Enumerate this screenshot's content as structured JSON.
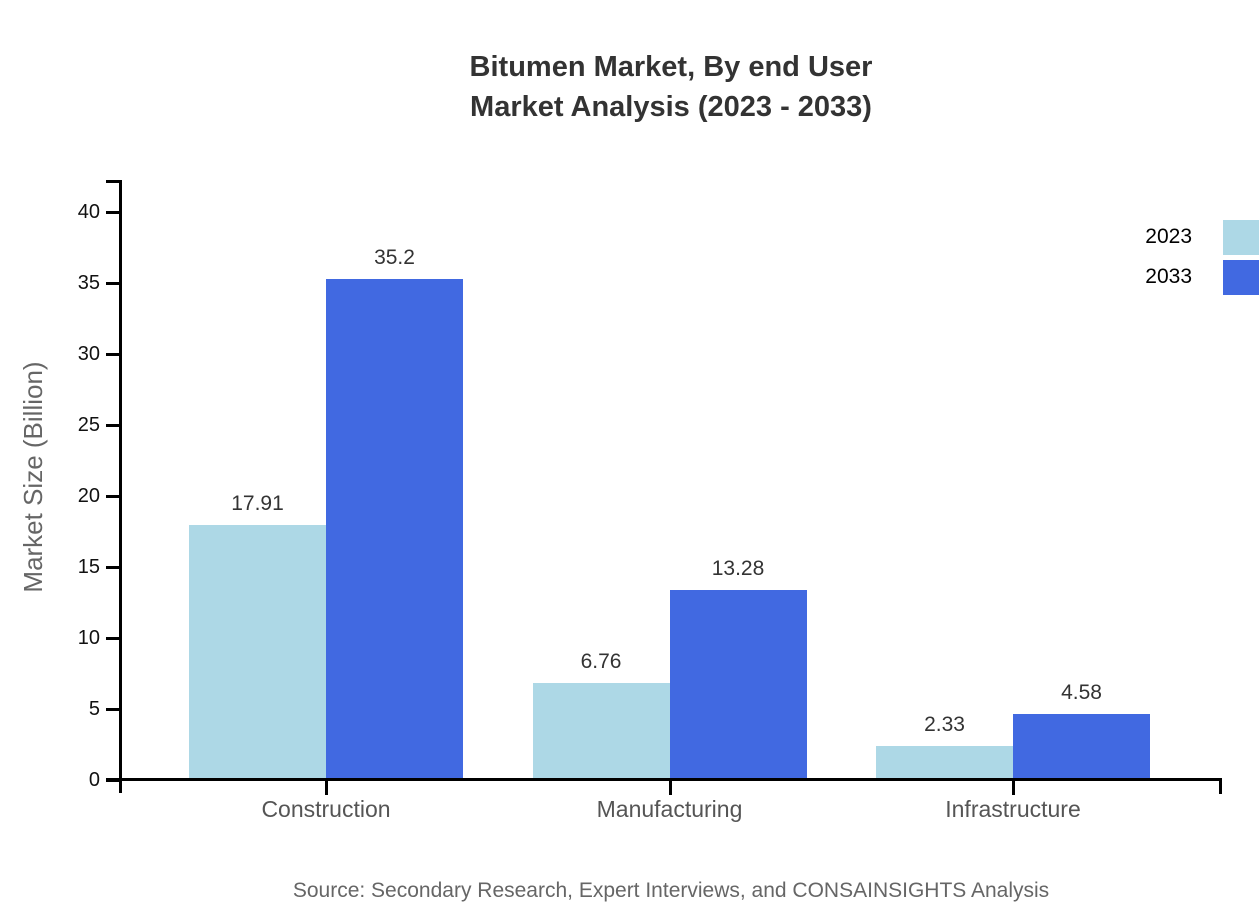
{
  "source_note": "Source: Secondary Research, Expert Interviews, and CONSAINSIGHTS Analysis",
  "chart_data": {
    "type": "bar",
    "title": "Bitumen Market, By end User Market Analysis (2023 - 2033)",
    "title_lines": [
      "Bitumen Market, By end User",
      "Market Analysis (2023 - 2033)"
    ],
    "categories": [
      "Construction",
      "Manufacturing",
      "Infrastructure"
    ],
    "series": [
      {
        "name": "2023",
        "color": "#ADD8E6",
        "values": [
          17.91,
          6.76,
          2.33
        ]
      },
      {
        "name": "2033",
        "color": "#4169E1",
        "values": [
          35.2,
          13.28,
          4.58
        ]
      }
    ],
    "value_labels": {
      "2023": [
        "17.91",
        "6.76",
        "2.33"
      ],
      "2033": [
        "35.2",
        "13.28",
        "4.58"
      ]
    },
    "xlabel": "",
    "ylabel": "Market Size (Billion)",
    "ylim": [
      0,
      40
    ],
    "yticks": [
      0,
      5,
      10,
      15,
      20,
      25,
      30,
      35,
      40
    ],
    "grid": false,
    "legend_position": "upper-right",
    "axis_color": "#000000"
  }
}
